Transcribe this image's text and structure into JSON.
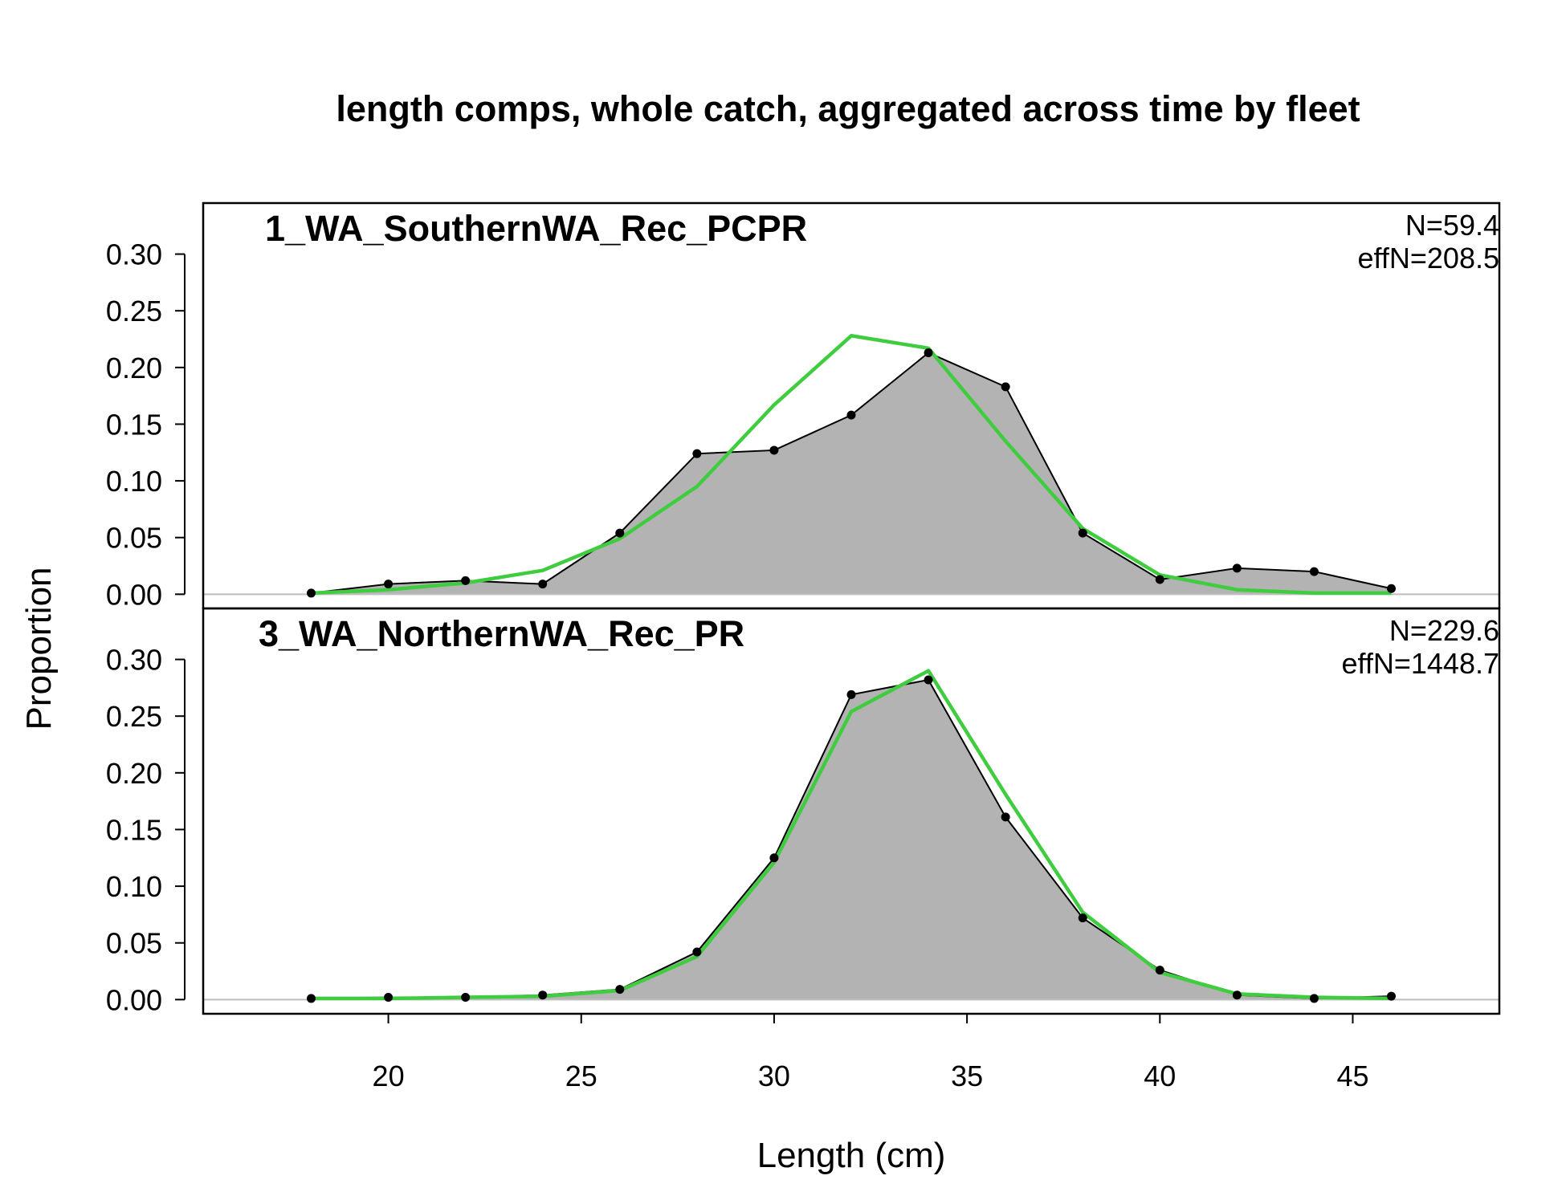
{
  "chart_data": {
    "type": "area",
    "title": "length comps, whole catch, aggregated across time by fleet",
    "xlabel": "Length (cm)",
    "ylabel": "Proportion",
    "xlim": [
      15.2,
      48.8
    ],
    "x_ticks": [
      "20",
      "25",
      "30",
      "35",
      "40",
      "45"
    ],
    "y_ticks": [
      "0.00",
      "0.05",
      "0.10",
      "0.15",
      "0.20",
      "0.25",
      "0.30"
    ],
    "ylim": [
      -0.0125,
      0.345
    ],
    "grid": false,
    "colors": {
      "observed_fill": "#b3b3b3",
      "observed_line": "#000000",
      "expected_line": "#3fcd3f",
      "zero_line": "#bebebe"
    },
    "panels": [
      {
        "name": "1_WA_SouthernWA_Rec_PCPR",
        "n_label": "N=59.4",
        "effn_label": "effN=208.5",
        "x": [
          18,
          20,
          22,
          24,
          26,
          28,
          30,
          32,
          34,
          36,
          38,
          40,
          42,
          44,
          46
        ],
        "observed": [
          0.001,
          0.009,
          0.012,
          0.009,
          0.054,
          0.124,
          0.127,
          0.158,
          0.213,
          0.183,
          0.054,
          0.013,
          0.023,
          0.02,
          0.005
        ],
        "expected": [
          0.001,
          0.004,
          0.01,
          0.021,
          0.049,
          0.095,
          0.167,
          0.228,
          0.217,
          0.135,
          0.058,
          0.017,
          0.004,
          0.001,
          0.001
        ]
      },
      {
        "name": "3_WA_NorthernWA_Rec_PR",
        "n_label": "N=229.6",
        "effn_label": "effN=1448.7",
        "x": [
          18,
          20,
          22,
          24,
          26,
          28,
          30,
          32,
          34,
          36,
          38,
          40,
          42,
          44,
          46
        ],
        "observed": [
          0.001,
          0.002,
          0.002,
          0.004,
          0.009,
          0.042,
          0.125,
          0.269,
          0.282,
          0.161,
          0.072,
          0.026,
          0.004,
          0.001,
          0.003
        ],
        "expected": [
          0.001,
          0.001,
          0.002,
          0.003,
          0.008,
          0.038,
          0.121,
          0.254,
          0.29,
          0.181,
          0.077,
          0.024,
          0.005,
          0.002,
          0.001
        ]
      }
    ]
  }
}
